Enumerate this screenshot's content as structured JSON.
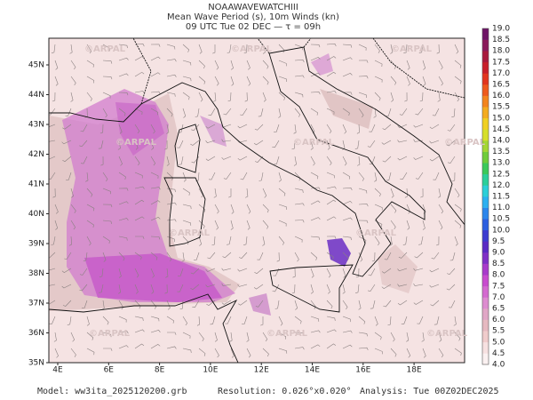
{
  "header": {
    "title": "NOAAWAVEWATCHIII",
    "subtitle": "Mean Wave Period (s), 10m Winds (kn)",
    "time": "09 UTC Tue 02 DEC  —  τ = 09h"
  },
  "map": {
    "lat_labels": [
      "35N",
      "36N",
      "37N",
      "38N",
      "39N",
      "40N",
      "41N",
      "42N",
      "43N",
      "44N",
      "45N"
    ],
    "lon_labels": [
      "4E",
      "6E",
      "8E",
      "10E",
      "12E",
      "14E",
      "16E",
      "18E"
    ],
    "watermark": "©ARPAL"
  },
  "colorbar": {
    "labels": [
      "4.0",
      "4.5",
      "5.0",
      "5.5",
      "6.0",
      "6.5",
      "7.0",
      "7.5",
      "8.0",
      "8.5",
      "9.0",
      "9.5",
      "10.0",
      "10.5",
      "11.0",
      "11.5",
      "12.0",
      "12.5",
      "13.0",
      "13.5",
      "14.0",
      "14.5",
      "15.0",
      "15.5",
      "16.0",
      "16.5",
      "17.0",
      "17.5",
      "18.0",
      "18.5",
      "19.0"
    ],
    "colors": [
      "#fbf1f1",
      "#f7e1e1",
      "#f0cccc",
      "#e6b9c0",
      "#e0a6c6",
      "#dd8cd0",
      "#d46ad0",
      "#c84bcf",
      "#a83acb",
      "#7f2fc6",
      "#5a2ac4",
      "#3c3bd0",
      "#2c5fe0",
      "#2b86ec",
      "#2cb0f0",
      "#2ccfd8",
      "#2ccf9a",
      "#3bc95a",
      "#6fcc3a",
      "#a4d632",
      "#d6df2a",
      "#f0d022",
      "#f4ab1e",
      "#f3841c",
      "#ee5a1c",
      "#e2351e",
      "#c81f2a",
      "#a81a3c",
      "#8a1a5a",
      "#6e1466"
    ]
  },
  "footer": {
    "model": "Model: ww3ita_2025120200.grb",
    "resolution": "Resolution: 0.026°x0.020°",
    "analysis": "Analysis: Tue 00Z02DEC2025"
  }
}
